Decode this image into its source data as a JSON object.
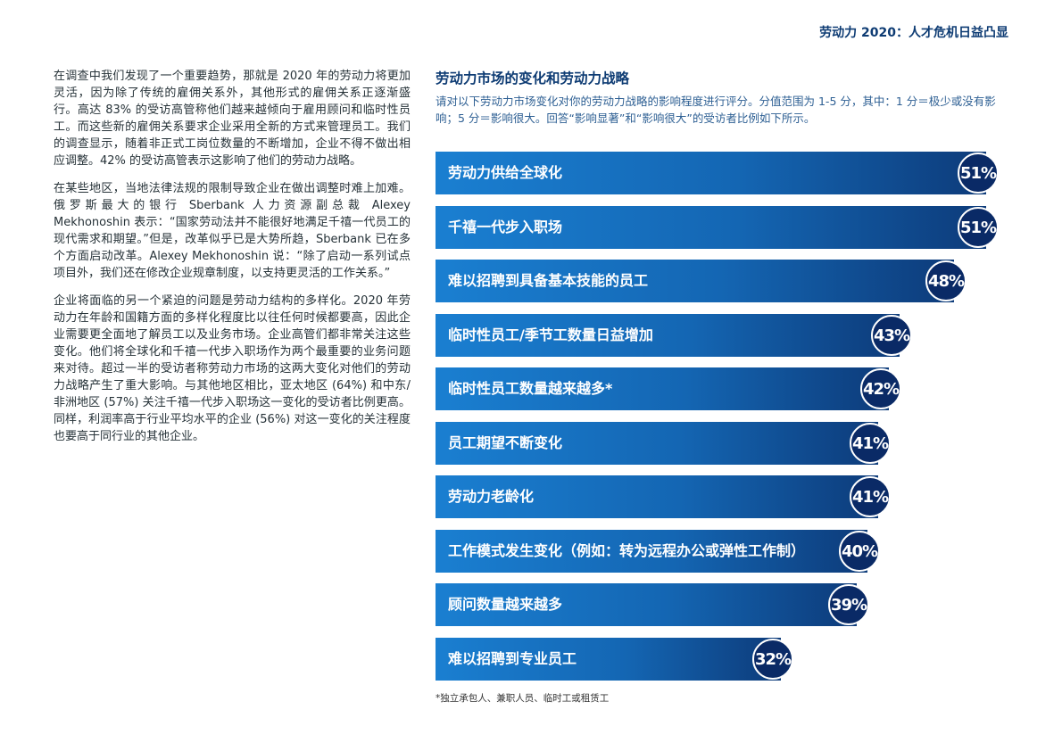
{
  "header": {
    "running_title": "劳动力 2020：人才危机日益凸显"
  },
  "body_text": {
    "paragraphs": [
      "在调查中我们发现了一个重要趋势，那就是 2020 年的劳动力将更加灵活，因为除了传统的雇佣关系外，其他形式的雇佣关系正逐渐盛行。高达 83% 的受访高管称他们越来越倾向于雇用顾问和临时性员工。而这些新的雇佣关系要求企业采用全新的方式来管理员工。我们的调查显示，随着非正式工岗位数量的不断增加，企业不得不做出相应调整。42% 的受访高管表示这影响了他们的劳动力战略。",
      "在某些地区，当地法律法规的限制导致企业在做出调整时难上加难。俄罗斯最大的银行 Sberbank 人力资源副总裁 Alexey Mekhonoshin 表示：“国家劳动法并不能很好地满足千禧一代员工的现代需求和期望。”但是，改革似乎已是大势所趋，Sberbank 已在多个方面启动改革。Alexey Mekhonoshin 说：“除了启动一系列试点项目外，我们还在修改企业规章制度，以支持更灵活的工作关系。”",
      "企业将面临的另一个紧迫的问题是劳动力结构的多样化。2020 年劳动力在年龄和国籍方面的多样化程度比以往任何时候都要高，因此企业需要更全面地了解员工以及业务市场。企业高管们都非常关注这些变化。他们将全球化和千禧一代步入职场作为两个最重要的业务问题来对待。超过一半的受访者称劳动力市场的这两大变化对他们的劳动力战略产生了重大影响。与其他地区相比，亚太地区 (64%) 和中东/非洲地区 (57%) 关注千禧一代步入职场这一变化的受访者比例更高。同样，利润率高于行业平均水平的企业 (56%) 对这一变化的关注程度也要高于同行业的其他企业。"
    ]
  },
  "chart": {
    "title": "劳动力市场的变化和劳动力战略",
    "description": "请对以下劳动力市场变化对你的劳动力战略的影响程度进行评分。分值范围为 1-5 分，其中：1 分＝极少或没有影响；5 分＝影响很大。回答“影响显著”和“影响很大”的受访者比例如下所示。",
    "footnote": "*独立承包人、兼职人员、临时工或租赁工"
  },
  "chart_data": {
    "type": "bar",
    "orientation": "horizontal",
    "title": "劳动力市场的变化和劳动力战略",
    "unit": "%",
    "categories": [
      "劳动力供给全球化",
      "千禧一代步入职场",
      "难以招聘到具备基本技能的员工",
      "临时性员工/季节工数量日益增加",
      "临时性员工数量越来越多*",
      "员工期望不断变化",
      "劳动力老龄化",
      "工作模式发生变化（例如：转为远程办公或弹性工作制）",
      "顾问数量越来越多",
      "难以招聘到专业员工"
    ],
    "values": [
      51,
      51,
      48,
      43,
      42,
      41,
      41,
      40,
      39,
      32
    ],
    "value_labels": [
      "51%",
      "51%",
      "48%",
      "43%",
      "42%",
      "41%",
      "41%",
      "40%",
      "39%",
      "32%"
    ],
    "colors": {
      "bar_start": "#1a7fd1",
      "bar_end": "#0d3b7a",
      "badge": "#0a2a66"
    }
  }
}
